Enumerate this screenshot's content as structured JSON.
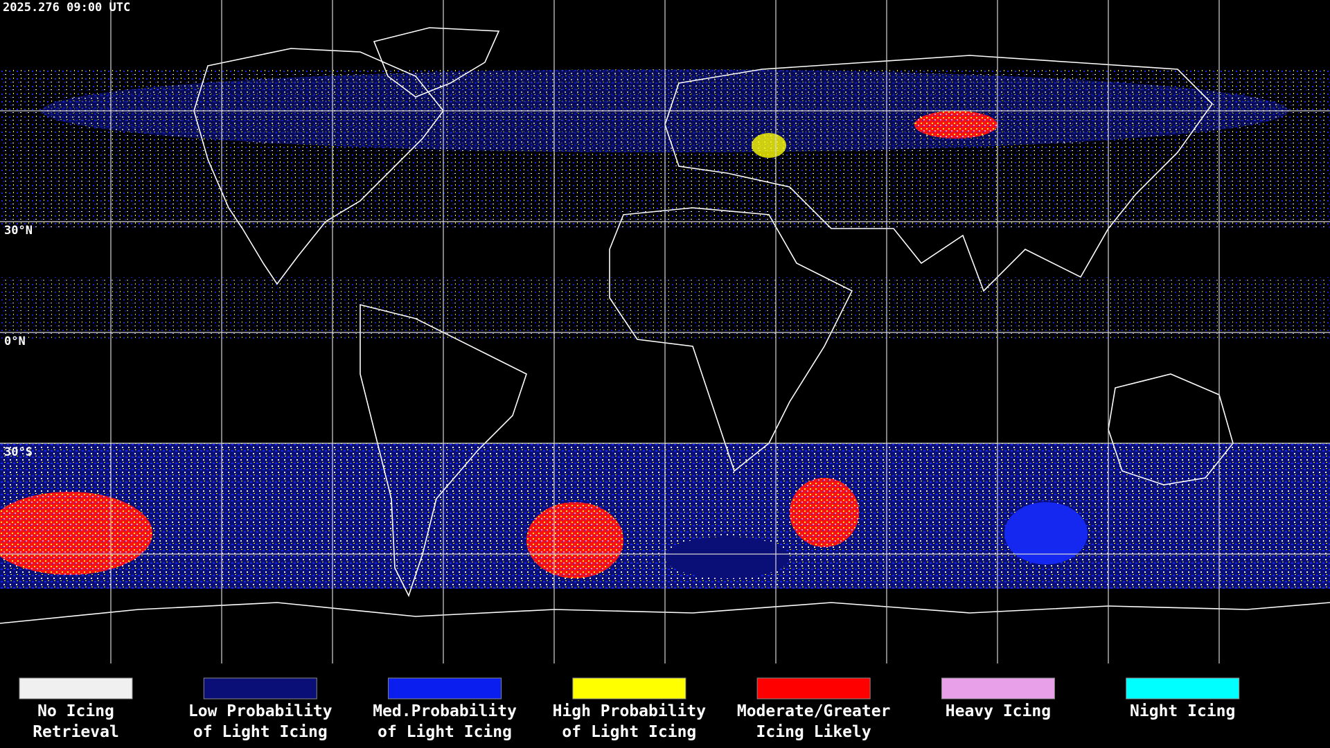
{
  "header": {
    "timestamp": "2025.276 09:00 UTC"
  },
  "map": {
    "latitude_labels": [
      "30°N",
      "0°N",
      "30°S"
    ]
  },
  "legend": [
    {
      "lines": [
        "No Icing",
        "Retrieval"
      ],
      "color": "#f0f0f0"
    },
    {
      "lines": [
        "Low Probability",
        "of Light Icing"
      ],
      "color": "#0a0f78"
    },
    {
      "lines": [
        "Med.Probability",
        "of Light Icing"
      ],
      "color": "#0a1ef0"
    },
    {
      "lines": [
        "High Probability",
        "of Light Icing"
      ],
      "color": "#ffff00"
    },
    {
      "lines": [
        "Moderate/Greater",
        "Icing Likely"
      ],
      "color": "#ff0000"
    },
    {
      "lines": [
        "Heavy Icing"
      ],
      "color": "#e8a0e8"
    },
    {
      "lines": [
        "Night Icing"
      ],
      "color": "#00ffff"
    }
  ]
}
